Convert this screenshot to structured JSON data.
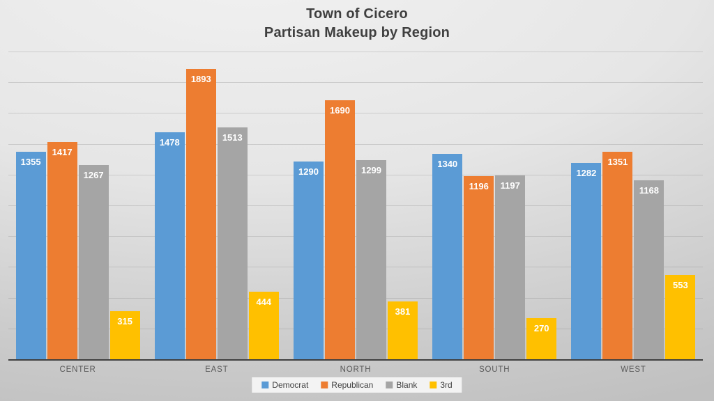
{
  "title": {
    "line1": "Town of Cicero",
    "line2": "Partisan Makeup by Region"
  },
  "chart_data": {
    "type": "bar",
    "title": "Town of Cicero — Partisan Makeup by Region",
    "categories": [
      "CENTER",
      "EAST",
      "NORTH",
      "SOUTH",
      "WEST"
    ],
    "series": [
      {
        "name": "Democrat",
        "color": "#5B9BD5",
        "values": [
          1355,
          1478,
          1290,
          1340,
          1282
        ]
      },
      {
        "name": "Republican",
        "color": "#ED7D31",
        "values": [
          1417,
          1893,
          1690,
          1196,
          1351
        ]
      },
      {
        "name": "Blank",
        "color": "#A5A5A5",
        "values": [
          1267,
          1513,
          1299,
          1197,
          1168
        ]
      },
      {
        "name": "3rd",
        "color": "#FFC000",
        "values": [
          315,
          444,
          381,
          270,
          553
        ]
      }
    ],
    "xlabel": "",
    "ylabel": "",
    "ylim": [
      0,
      2000
    ],
    "gridline_step": 200,
    "grid": true,
    "y_axis_labels_visible": false,
    "data_labels": "inside-end-white-bold",
    "legend_position": "bottom-center",
    "axis_line_color": "#404040",
    "label_color": "#595959",
    "title_color": "#3f3f3f"
  }
}
